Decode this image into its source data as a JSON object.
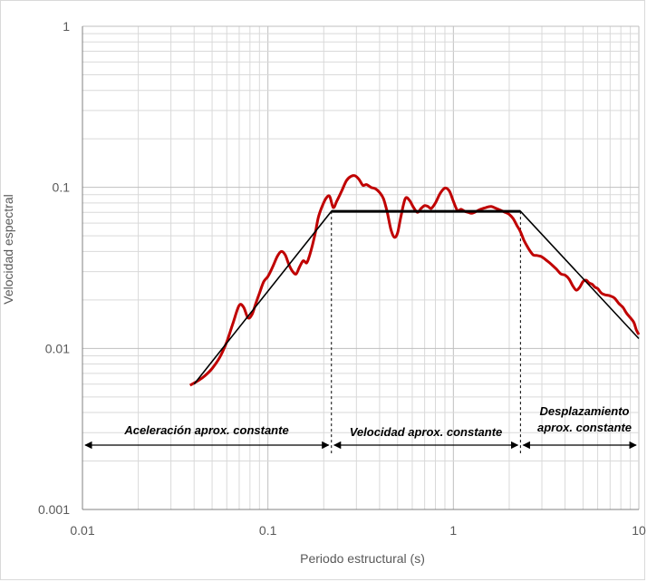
{
  "chart_data": {
    "type": "line",
    "title": "",
    "xlabel": "Periodo estructural (s)",
    "ylabel": "Velocidad espectral",
    "x_scale": "log",
    "y_scale": "log",
    "xlim": [
      0.01,
      10
    ],
    "ylim": [
      0.001,
      1
    ],
    "grid": true,
    "x_tick_labels": [
      "0.01",
      "0.1",
      "1",
      "10"
    ],
    "y_tick_labels": [
      "0.001",
      "0.01",
      "0.1",
      "1"
    ],
    "series": [
      {
        "color": "#c00000",
        "x": [
          0.038,
          0.042,
          0.046,
          0.05,
          0.055,
          0.06,
          0.065,
          0.07,
          0.074,
          0.078,
          0.082,
          0.086,
          0.09,
          0.095,
          0.1,
          0.106,
          0.112,
          0.118,
          0.124,
          0.13,
          0.136,
          0.142,
          0.148,
          0.155,
          0.162,
          0.168,
          0.174,
          0.18,
          0.187,
          0.195,
          0.205,
          0.215,
          0.225,
          0.235,
          0.25,
          0.265,
          0.28,
          0.295,
          0.31,
          0.325,
          0.34,
          0.36,
          0.38,
          0.4,
          0.42,
          0.44,
          0.46,
          0.48,
          0.5,
          0.52,
          0.55,
          0.58,
          0.61,
          0.64,
          0.67,
          0.7,
          0.73,
          0.76,
          0.8,
          0.85,
          0.9,
          0.95,
          1.0,
          1.05,
          1.1,
          1.15,
          1.2,
          1.25,
          1.3,
          1.4,
          1.5,
          1.6,
          1.7,
          1.8,
          1.9,
          2.0,
          2.1,
          2.2,
          2.3,
          2.4,
          2.5,
          2.6,
          2.7,
          2.8,
          2.9,
          3.0,
          3.2,
          3.4,
          3.6,
          3.8,
          4.0,
          4.2,
          4.4,
          4.6,
          4.8,
          5.0,
          5.2,
          5.4,
          5.6,
          5.8,
          6.0,
          6.3,
          6.6,
          7.0,
          7.4,
          7.8,
          8.2,
          8.6,
          9.0,
          9.4,
          9.7,
          10.0
        ],
        "y": [
          0.0059,
          0.0063,
          0.0068,
          0.0075,
          0.0088,
          0.011,
          0.0145,
          0.0185,
          0.018,
          0.0155,
          0.0162,
          0.019,
          0.022,
          0.026,
          0.028,
          0.032,
          0.037,
          0.04,
          0.038,
          0.033,
          0.03,
          0.029,
          0.032,
          0.035,
          0.034,
          0.038,
          0.044,
          0.052,
          0.065,
          0.075,
          0.085,
          0.088,
          0.075,
          0.082,
          0.095,
          0.11,
          0.117,
          0.118,
          0.112,
          0.103,
          0.104,
          0.1,
          0.098,
          0.093,
          0.085,
          0.07,
          0.055,
          0.049,
          0.052,
          0.065,
          0.085,
          0.083,
          0.075,
          0.07,
          0.074,
          0.077,
          0.076,
          0.074,
          0.08,
          0.092,
          0.099,
          0.095,
          0.082,
          0.072,
          0.073,
          0.071,
          0.07,
          0.069,
          0.07,
          0.073,
          0.075,
          0.076,
          0.074,
          0.072,
          0.07,
          0.068,
          0.064,
          0.058,
          0.053,
          0.047,
          0.043,
          0.04,
          0.038,
          0.0378,
          0.0375,
          0.037,
          0.035,
          0.033,
          0.031,
          0.029,
          0.0285,
          0.027,
          0.0245,
          0.023,
          0.024,
          0.026,
          0.0265,
          0.0255,
          0.025,
          0.024,
          0.0235,
          0.022,
          0.0215,
          0.0212,
          0.0205,
          0.019,
          0.018,
          0.0165,
          0.0155,
          0.0145,
          0.013,
          0.0122
        ]
      },
      {
        "color": "#000000",
        "x": [
          0.04,
          0.22,
          2.3,
          10.0
        ],
        "y": [
          0.006,
          0.071,
          0.071,
          0.0115
        ]
      }
    ],
    "boundaries": [
      0.22,
      2.3
    ],
    "annotations": [
      {
        "text": "Aceleración aprox. constante",
        "from": 0.01,
        "to": 0.22
      },
      {
        "text": "Velocidad aprox. constante",
        "from": 0.22,
        "to": 2.3
      },
      {
        "text": "Desplazamiento",
        "text2": "aprox. constante",
        "from": 2.3,
        "to": 10
      }
    ]
  }
}
